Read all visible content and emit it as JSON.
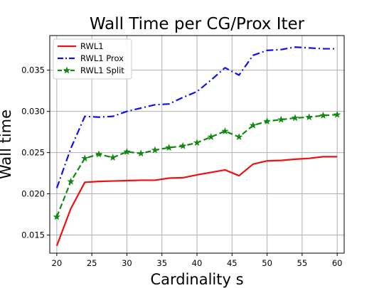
{
  "chart_data": {
    "type": "line",
    "title": "Wall Time per CG/Prox Iter",
    "xlabel": "Cardinality s",
    "ylabel": "Wall time",
    "xlim": [
      19,
      61
    ],
    "ylim": [
      0.0128,
      0.0392
    ],
    "xticks": [
      "20",
      "25",
      "30",
      "35",
      "40",
      "45",
      "50",
      "55",
      "60"
    ],
    "yticks": [
      "0.015",
      "0.020",
      "0.025",
      "0.030",
      "0.035"
    ],
    "grid": true,
    "legend_position": "top-left",
    "series": [
      {
        "name": "RWL1",
        "color": "#ee1111",
        "linestyle": "solid",
        "marker": "none",
        "x": [
          20,
          22,
          24,
          26,
          28,
          30,
          32,
          34,
          36,
          38,
          40,
          42,
          44,
          46,
          48,
          50,
          52,
          54,
          56,
          58,
          60
        ],
        "y": [
          0.0137,
          0.0182,
          0.0214,
          0.0215,
          0.02155,
          0.0216,
          0.02165,
          0.02165,
          0.0219,
          0.02195,
          0.0223,
          0.0226,
          0.0229,
          0.0222,
          0.0236,
          0.024,
          0.02405,
          0.0242,
          0.0243,
          0.0245,
          0.0245
        ]
      },
      {
        "name": "RWL1 Prox",
        "color": "#1010ee",
        "linestyle": "dashdot",
        "marker": "none",
        "x": [
          20,
          22,
          24,
          26,
          28,
          30,
          32,
          34,
          36,
          38,
          40,
          42,
          44,
          46,
          48,
          50,
          52,
          54,
          56,
          58,
          60
        ],
        "y": [
          0.0207,
          0.0255,
          0.0294,
          0.0293,
          0.0294,
          0.03,
          0.0304,
          0.0308,
          0.0309,
          0.0317,
          0.0324,
          0.0338,
          0.0353,
          0.0344,
          0.0368,
          0.0374,
          0.0375,
          0.0378,
          0.0377,
          0.0376,
          0.0376
        ]
      },
      {
        "name": "RWL1 Split",
        "color": "#118811",
        "linestyle": "dashed",
        "marker": "star",
        "x": [
          20,
          22,
          24,
          26,
          28,
          30,
          32,
          34,
          36,
          38,
          40,
          42,
          44,
          46,
          48,
          50,
          52,
          54,
          56,
          58,
          60
        ],
        "y": [
          0.0172,
          0.0215,
          0.0243,
          0.0248,
          0.0244,
          0.0251,
          0.0249,
          0.0253,
          0.0256,
          0.0258,
          0.0262,
          0.0269,
          0.0276,
          0.0269,
          0.0283,
          0.0288,
          0.029,
          0.0292,
          0.0293,
          0.0295,
          0.0296
        ]
      }
    ]
  }
}
